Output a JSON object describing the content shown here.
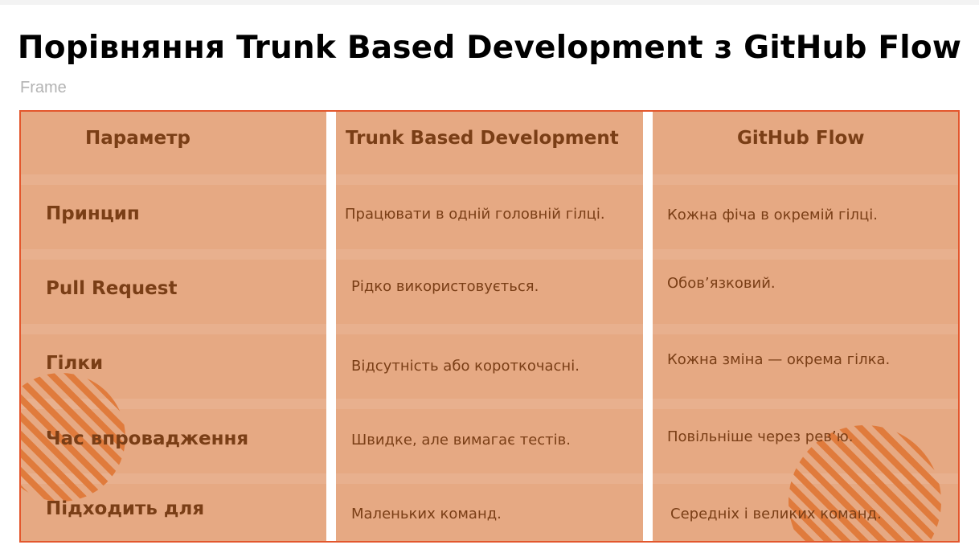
{
  "title": "Порівняння Trunk Based Development з GitHub Flow",
  "frame_label": "Frame",
  "colors": {
    "cell_fill": "#e6a983",
    "border": "#e3572d",
    "text": "#7a3e16",
    "stripe": "#e07b3c"
  },
  "table": {
    "headers": [
      "Параметр",
      "Trunk Based Development",
      "GitHub Flow"
    ],
    "rows": [
      {
        "param": "Принцип",
        "tbd": "Працювати в одній головній гілці.",
        "ghf": "Кожна фіча в окремій гілці."
      },
      {
        "param": "Pull Request",
        "tbd": "Рідко використовується.",
        "ghf": "Обов’язковий."
      },
      {
        "param": "Гілки",
        "tbd": "Відсутність або короткочасні.",
        "ghf": "Кожна зміна — окрема гілка."
      },
      {
        "param": "Час впровадження",
        "tbd": "Швидке, але вимагає тестів.",
        "ghf": "Повільніше через рев’ю."
      },
      {
        "param": "Підходить для",
        "tbd": "Маленьких команд.",
        "ghf": "Середніх і великих команд."
      }
    ]
  },
  "decorations": [
    "striped-circle-left",
    "striped-circle-right"
  ]
}
